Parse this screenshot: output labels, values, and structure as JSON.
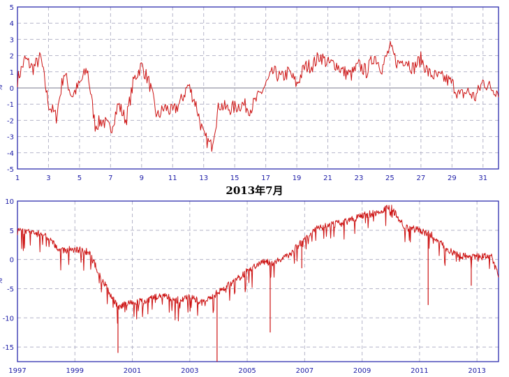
{
  "caption": "2013年7月",
  "colors": {
    "line": "#cc1111",
    "axis": "#1a1aa6",
    "grid": "#b4b4c8",
    "tick_text": "#1a1aa6"
  },
  "chart_data": [
    {
      "type": "line",
      "title": "",
      "xlabel": "",
      "ylabel": "%",
      "ylim": [
        -5,
        5
      ],
      "xlim": [
        1,
        32
      ],
      "x_ticks": [
        1,
        3,
        5,
        7,
        9,
        11,
        13,
        15,
        17,
        19,
        21,
        23,
        25,
        27,
        29,
        31
      ],
      "y_ticks": [
        5,
        4,
        3,
        2,
        1,
        0,
        -1,
        -2,
        -3,
        -4,
        -5
      ],
      "grid": true,
      "x": [
        1.0,
        1.5,
        2.0,
        2.5,
        3.0,
        3.5,
        4.0,
        4.5,
        5.0,
        5.5,
        6.0,
        6.5,
        7.0,
        7.5,
        8.0,
        8.5,
        9.0,
        9.5,
        10.0,
        10.5,
        11.0,
        11.5,
        12.0,
        12.5,
        13.0,
        13.5,
        14.0,
        14.5,
        15.0,
        15.5,
        16.0,
        16.5,
        17.0,
        17.5,
        18.0,
        18.5,
        19.0,
        19.5,
        20.0,
        20.5,
        21.0,
        21.5,
        22.0,
        22.5,
        23.0,
        23.5,
        24.0,
        24.5,
        25.0,
        25.5,
        26.0,
        26.5,
        27.0,
        27.5,
        28.0,
        28.5,
        29.0,
        29.5,
        30.0,
        30.5,
        31.0,
        31.5,
        32.0
      ],
      "values": [
        0.5,
        1.8,
        1.2,
        1.9,
        -1.0,
        -1.8,
        1.0,
        -0.5,
        0.2,
        1.2,
        -2.3,
        -2.0,
        -2.6,
        -1.0,
        -2.0,
        0.5,
        1.4,
        0.3,
        -1.8,
        -1.2,
        -1.5,
        -0.9,
        0.2,
        -1.0,
        -3.0,
        -3.6,
        -1.0,
        -1.3,
        -1.2,
        -1.0,
        -1.3,
        -0.6,
        0.2,
        1.0,
        0.6,
        1.0,
        0.2,
        1.3,
        1.4,
        2.0,
        1.5,
        1.5,
        1.0,
        0.8,
        1.4,
        1.0,
        2.0,
        1.2,
        2.5,
        1.5,
        1.8,
        1.2,
        1.8,
        0.9,
        0.7,
        0.6,
        0.3,
        -0.5,
        -0.2,
        -0.6,
        0.4,
        0.0,
        -0.2
      ]
    },
    {
      "type": "line",
      "title": "",
      "xlabel": "",
      "ylabel": "%",
      "ylim": [
        -17.5,
        10
      ],
      "xlim": [
        1997,
        2013.75
      ],
      "x_ticks": [
        1997,
        1999,
        2001,
        2003,
        2005,
        2007,
        2009,
        2011,
        2013
      ],
      "y_ticks": [
        10,
        5,
        0,
        -5,
        -10,
        -15
      ],
      "grid": true,
      "x": [
        1997.0,
        1997.5,
        1998.0,
        1998.5,
        1999.0,
        1999.5,
        2000.0,
        2000.5,
        2001.0,
        2001.5,
        2002.0,
        2002.5,
        2003.0,
        2003.5,
        2004.0,
        2004.5,
        2005.0,
        2005.5,
        2006.0,
        2006.5,
        2007.0,
        2007.5,
        2008.0,
        2008.5,
        2009.0,
        2009.5,
        2010.0,
        2010.5,
        2011.0,
        2011.5,
        2012.0,
        2012.5,
        2013.0,
        2013.5,
        2013.75
      ],
      "values": [
        4.8,
        4.6,
        4.2,
        1.5,
        1.8,
        1.2,
        -4.0,
        -8.0,
        -7.5,
        -7.0,
        -6.0,
        -7.0,
        -6.5,
        -7.5,
        -5.5,
        -4.0,
        -2.0,
        -0.5,
        -0.5,
        1.0,
        3.5,
        5.5,
        6.0,
        6.5,
        7.5,
        8.0,
        9.0,
        5.5,
        5.0,
        4.0,
        1.5,
        0.5,
        0.5,
        0.5,
        -3.0
      ],
      "spikes": [
        {
          "x": 2000.5,
          "y": -16.0
        },
        {
          "x": 2003.95,
          "y": -17.5
        },
        {
          "x": 2005.8,
          "y": -12.5
        },
        {
          "x": 2006.9,
          "y": -1.5
        },
        {
          "x": 2011.3,
          "y": -7.8
        },
        {
          "x": 2012.8,
          "y": -4.5
        }
      ]
    }
  ]
}
